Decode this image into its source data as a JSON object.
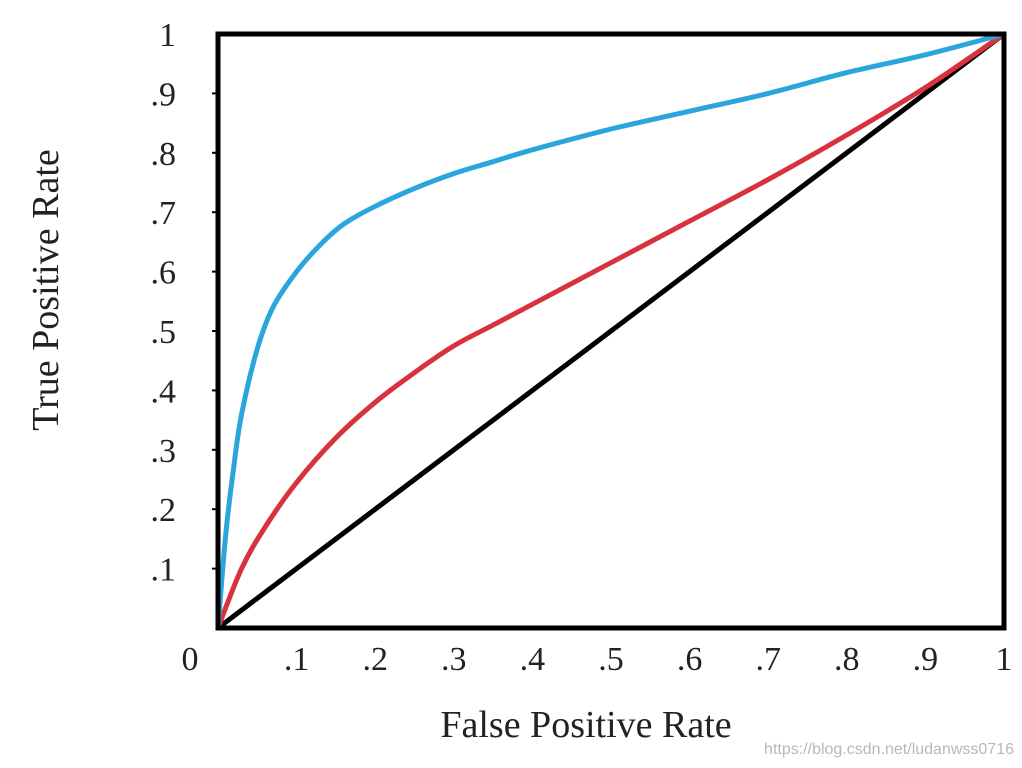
{
  "chart_data": {
    "type": "line",
    "title": "",
    "xlabel": "False Positive Rate",
    "ylabel": "True Positive Rate",
    "xlim": [
      0,
      1
    ],
    "ylim": [
      0,
      1
    ],
    "grid": false,
    "x_tick_labels": [
      "0",
      ".1",
      ".2",
      ".3",
      ".4",
      ".5",
      ".6",
      ".7",
      ".8",
      ".9",
      "1"
    ],
    "y_tick_labels": [
      ".1",
      ".2",
      ".3",
      ".4",
      ".5",
      ".6",
      ".7",
      ".8",
      ".9",
      "1"
    ],
    "x_ticks": [
      0,
      0.1,
      0.2,
      0.3,
      0.4,
      0.5,
      0.6,
      0.7,
      0.8,
      0.9,
      1
    ],
    "y_ticks": [
      0.1,
      0.2,
      0.3,
      0.4,
      0.5,
      0.6,
      0.7,
      0.8,
      0.9,
      1
    ],
    "series": [
      {
        "color": "#2aa6dc",
        "x": [
          0,
          0.01,
          0.02,
          0.03,
          0.05,
          0.07,
          0.1,
          0.13,
          0.16,
          0.2,
          0.25,
          0.3,
          0.35,
          0.4,
          0.5,
          0.6,
          0.7,
          0.8,
          0.9,
          1
        ],
        "y": [
          0,
          0.16,
          0.27,
          0.36,
          0.47,
          0.54,
          0.6,
          0.645,
          0.68,
          0.71,
          0.74,
          0.765,
          0.785,
          0.805,
          0.84,
          0.87,
          0.9,
          0.935,
          0.965,
          1
        ]
      },
      {
        "color": "#d8333c",
        "x": [
          0,
          0.03,
          0.06,
          0.1,
          0.15,
          0.2,
          0.25,
          0.3,
          0.35,
          0.4,
          0.5,
          0.6,
          0.7,
          0.8,
          0.9,
          1
        ],
        "y": [
          0,
          0.1,
          0.17,
          0.245,
          0.32,
          0.38,
          0.43,
          0.475,
          0.51,
          0.545,
          0.615,
          0.685,
          0.755,
          0.83,
          0.91,
          1
        ]
      },
      {
        "color": "#000000",
        "x": [
          0,
          1
        ],
        "y": [
          0,
          1
        ]
      }
    ]
  },
  "watermark": "https://blog.csdn.net/ludanwss0716"
}
